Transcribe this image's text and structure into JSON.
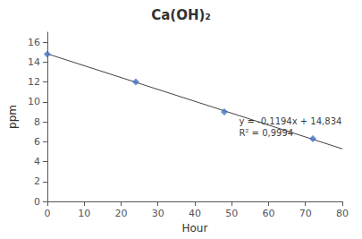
{
  "chart_data": {
    "type": "scatter",
    "title": "Ca(OH)₂",
    "xlabel": "Hour",
    "ylabel": "ppm",
    "series": [
      {
        "type": "scatter",
        "x": [
          0,
          24,
          48,
          72
        ],
        "values": [
          14.8,
          12.0,
          9.0,
          6.3
        ],
        "color": "#4472C4",
        "marker": "diamond"
      },
      {
        "type": "line",
        "x": [
          0,
          80
        ],
        "values": [
          14.834,
          5.282
        ],
        "color": "#404040",
        "line_style": "solid"
      }
    ],
    "annotations": [
      {
        "text": "y = -0,1194x + 14,834\nR² = 0,9994",
        "x": 52,
        "y": 7.5
      }
    ],
    "xlim": [
      0,
      80
    ],
    "ylim": [
      0,
      17
    ],
    "xticks": [
      0,
      10,
      20,
      30,
      40,
      50,
      60,
      70,
      80
    ],
    "yticks": [
      0,
      2,
      4,
      6,
      8,
      10,
      12,
      14,
      16
    ],
    "grid": false
  }
}
